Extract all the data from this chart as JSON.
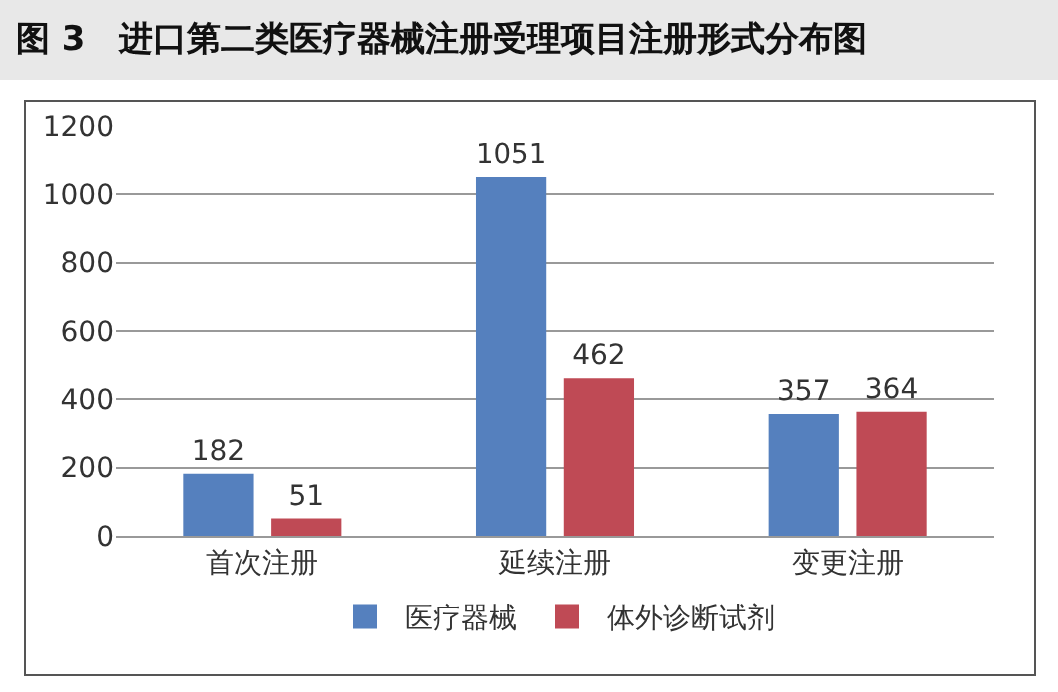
{
  "chart_data": {
    "type": "bar",
    "title": "图 3　进口第二类医疗器械注册受理项目注册形式分布图",
    "categories": [
      "首次注册",
      "延续注册",
      "变更注册"
    ],
    "series": [
      {
        "name": "医疗器械",
        "color": "#5580be",
        "values": [
          182,
          1051,
          357
        ]
      },
      {
        "name": "体外诊断试剂",
        "color": "#bf4a55",
        "values": [
          51,
          462,
          364
        ]
      }
    ],
    "ylim": [
      0,
      1200
    ],
    "yticks": [
      0,
      200,
      400,
      600,
      800,
      1000,
      1200
    ],
    "grid": "y",
    "legend": "bottom",
    "data_labels": true
  }
}
